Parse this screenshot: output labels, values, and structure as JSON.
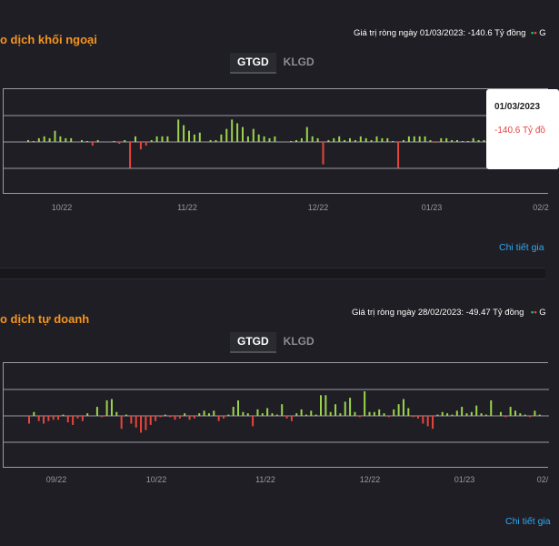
{
  "colors": {
    "background": "#1e1e24",
    "title": "#f7941d",
    "positive": "#9bd44b",
    "negative": "#e8453c",
    "link": "#2ea8f4",
    "grid": "#9a9aa0"
  },
  "foreign": {
    "title": "o dịch khối ngoại",
    "net_info": "Giá trị ròng ngày 01/03/2023: -140.6 Tỷ đồng",
    "legend_prefix": "• G",
    "tabs": [
      "GTGD",
      "KLGD"
    ],
    "active_tab": "GTGD",
    "tooltip_date": "01/03/2023",
    "tooltip_value": "-140.6 Tỷ đồ",
    "detail_link": "Chi tiết gia",
    "x_labels": [
      "10/22",
      "11/22",
      "12/22",
      "01/23",
      "02/2"
    ]
  },
  "proprietary": {
    "title": "o dịch tự doanh",
    "net_info": "Giá trị ròng ngày 28/02/2023: -49.47 Tỷ đồng",
    "legend_prefix": "• G",
    "tabs": [
      "GTGD",
      "KLGD"
    ],
    "active_tab": "GTGD",
    "detail_link": "Chi tiết gia",
    "x_labels": [
      "09/22",
      "10/22",
      "11/22",
      "12/22",
      "01/23",
      "02/"
    ]
  },
  "chart_data": [
    {
      "type": "bar",
      "title": "",
      "xlabel": "",
      "ylabel": "",
      "x_tick_labels": [
        "10/22",
        "11/22",
        "12/22",
        "01/23",
        "02/2"
      ],
      "grid": true,
      "values": [
        1,
        0.5,
        2,
        3,
        2,
        6,
        3,
        2,
        2,
        0,
        1,
        0.5,
        -2,
        1,
        0,
        0,
        0.5,
        -1,
        1,
        -14,
        3,
        -4,
        -2,
        1,
        3,
        3,
        3,
        0,
        12,
        9,
        6,
        4,
        5,
        0,
        1,
        1,
        4,
        7,
        12,
        10,
        8,
        3,
        7,
        4,
        3,
        2,
        3,
        0,
        0,
        0.5,
        1,
        2,
        8,
        3,
        2,
        -12,
        1,
        2,
        3,
        1,
        2,
        1,
        3,
        2,
        1,
        3,
        2,
        2,
        0.5,
        -14,
        1,
        3,
        3,
        3,
        3,
        1,
        -0.5,
        2,
        2,
        1,
        1,
        0.5,
        0.5,
        2,
        1,
        1,
        1,
        2
      ]
    },
    {
      "type": "bar",
      "title": "",
      "xlabel": "",
      "ylabel": "",
      "x_tick_labels": [
        "09/22",
        "10/22",
        "11/22",
        "12/22",
        "01/23",
        "02/"
      ],
      "grid": true,
      "values": [
        -6,
        3,
        -4,
        -6,
        -4,
        -3,
        -3,
        1,
        -5,
        -7,
        -2,
        -4,
        2,
        0,
        7,
        -1,
        12,
        13,
        3,
        -10,
        1,
        -6,
        -9,
        -13,
        -11,
        -7,
        -4,
        -1,
        1,
        -1,
        -3,
        -2,
        2,
        -3,
        -2,
        2,
        4,
        2,
        4,
        -4,
        -2,
        1,
        7,
        12,
        3,
        2,
        -8,
        5,
        2,
        6,
        2,
        1,
        9,
        -2,
        -4,
        2,
        5,
        1,
        4,
        1,
        16,
        16,
        3,
        9,
        2,
        11,
        14,
        3,
        -1,
        19,
        3,
        3,
        5,
        2,
        -1,
        5,
        9,
        13,
        6,
        -1,
        -2,
        -6,
        -8,
        -10,
        1,
        3,
        2,
        1,
        4,
        7,
        2,
        3,
        8,
        2,
        1,
        12,
        0,
        3,
        -1,
        7,
        4,
        2,
        1,
        -1,
        4,
        1
      ]
    }
  ]
}
